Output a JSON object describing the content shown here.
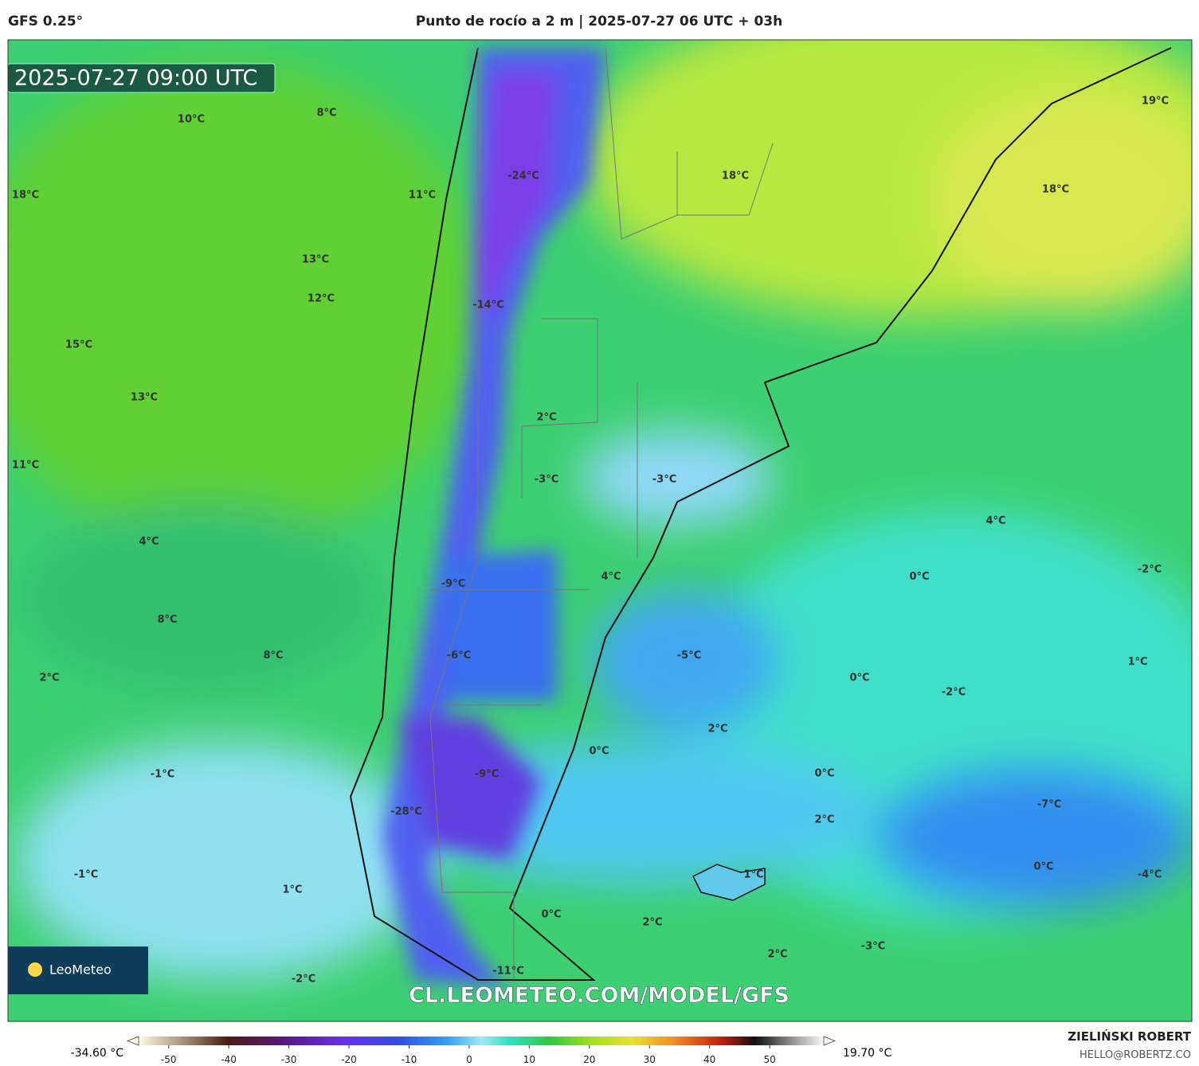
{
  "header": {
    "model": "GFS 0.25°",
    "title": "Punto de rocío a 2 m | 2025-07-27 06 UTC + 03h"
  },
  "map": {
    "timestamp": "2025-07-27 09:00 UTC",
    "labels": [
      "10°C",
      "8°C",
      "18°C",
      "11°C",
      "-24°C",
      "18°C",
      "19°C",
      "18°C",
      "13°C",
      "12°C",
      "-14°C",
      "15°C",
      "13°C",
      "2°C",
      "11°C",
      "-3°C",
      "-3°C",
      "4°C",
      "4°C",
      "-9°C",
      "4°C",
      "0°C",
      "-2°C",
      "8°C",
      "8°C",
      "-6°C",
      "-5°C",
      "1°C",
      "2°C",
      "0°C",
      "-2°C",
      "2°C",
      "0°C",
      "-1°C",
      "-9°C",
      "0°C",
      "2°C",
      "-7°C",
      "-28°C",
      "-1°C",
      "1°C",
      "0°C",
      "-4°C",
      "1°C",
      "0°C",
      "2°C",
      "-3°C",
      "2°C",
      "-2°C",
      "-11°C"
    ],
    "logo": "LeoMeteo",
    "watermark": "CL.LEOMETEO.COM/MODEL/GFS"
  },
  "colorbar": {
    "min_label": "-34.60 °C",
    "max_label": "19.70 °C",
    "range": [
      -55,
      59
    ],
    "ticks": [
      -50,
      -40,
      -30,
      -20,
      -10,
      0,
      10,
      20,
      30,
      40,
      50
    ]
  },
  "footer": {
    "author": "ZIELIŃSKI ROBERT",
    "email": "HELLO@ROBERTZ.CO"
  }
}
